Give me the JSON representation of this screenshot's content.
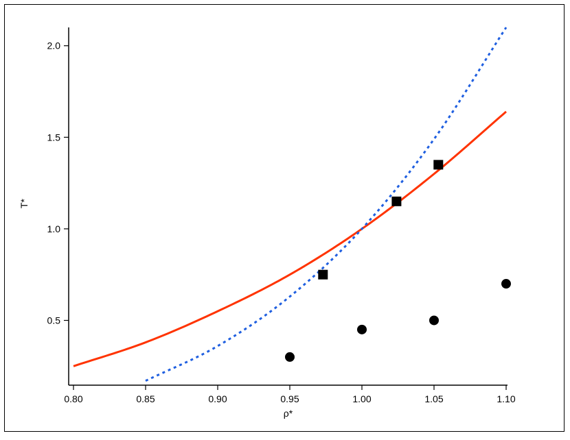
{
  "chart_data": {
    "type": "scatter",
    "xlabel": "ρ*",
    "ylabel": "T*",
    "xlim": [
      0.8,
      1.1
    ],
    "ylim": [
      0.15,
      2.1
    ],
    "x_ticks": [
      "0.80",
      "0.85",
      "0.90",
      "0.95",
      "1.00",
      "1.05",
      "1.10"
    ],
    "y_ticks": [
      "0.5",
      "1.0",
      "1.5",
      "2.0"
    ],
    "grid": false,
    "series": [
      {
        "marker": "square",
        "color": "#000000",
        "points": [
          {
            "x": 0.973,
            "y": 0.75
          },
          {
            "x": 1.024,
            "y": 1.15
          },
          {
            "x": 1.053,
            "y": 1.35
          }
        ]
      },
      {
        "marker": "circle",
        "color": "#000000",
        "points": [
          {
            "x": 0.95,
            "y": 0.3
          },
          {
            "x": 1.0,
            "y": 0.45
          },
          {
            "x": 1.05,
            "y": 0.5
          },
          {
            "x": 1.1,
            "y": 0.7
          }
        ]
      },
      {
        "line": "solid",
        "color": "#ff3300",
        "points": [
          {
            "x": 0.8,
            "y": 0.25
          },
          {
            "x": 0.85,
            "y": 0.38
          },
          {
            "x": 0.9,
            "y": 0.55
          },
          {
            "x": 0.95,
            "y": 0.75
          },
          {
            "x": 1.0,
            "y": 1.0
          },
          {
            "x": 1.05,
            "y": 1.3
          },
          {
            "x": 1.1,
            "y": 1.64
          }
        ]
      },
      {
        "line": "dotted",
        "color": "#1f5fe0",
        "points": [
          {
            "x": 0.85,
            "y": 0.17
          },
          {
            "x": 0.9,
            "y": 0.36
          },
          {
            "x": 0.95,
            "y": 0.63
          },
          {
            "x": 1.0,
            "y": 1.0
          },
          {
            "x": 1.05,
            "y": 1.49
          },
          {
            "x": 1.1,
            "y": 2.1
          }
        ]
      }
    ]
  }
}
